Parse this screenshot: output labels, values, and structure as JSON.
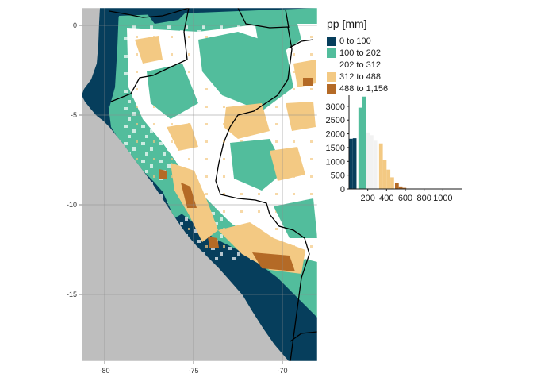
{
  "legend": {
    "title": "pp [mm]",
    "items": [
      {
        "label": "0 to 100",
        "color": "#063e5c"
      },
      {
        "label": "100 to 202",
        "color": "#52bd9c"
      },
      {
        "label": "202 to 312",
        "color": "#ffffff"
      },
      {
        "label": "312 to 488",
        "color": "#f3c983"
      },
      {
        "label": "488 to 1,156",
        "color": "#b46a26"
      }
    ]
  },
  "chart_data": {
    "type": "map",
    "lon_ticks": [
      "-80",
      "-75",
      "-70"
    ],
    "lat_ticks": [
      "0",
      "-5",
      "-10",
      "-15"
    ],
    "histogram": {
      "type": "bar",
      "x_ticks": [
        "200",
        "400",
        "600",
        "800",
        "1000"
      ],
      "y_ticks": [
        "0",
        "500",
        "1000",
        "1500",
        "2000",
        "2500",
        "3000"
      ],
      "xlim": [
        0,
        1200
      ],
      "ylim": [
        0,
        3400
      ],
      "bins": [
        {
          "x0": 0,
          "x1": 40,
          "count": 1820,
          "class": 0
        },
        {
          "x0": 40,
          "x1": 80,
          "count": 1840,
          "class": 0
        },
        {
          "x0": 100,
          "x1": 140,
          "count": 2950,
          "class": 1
        },
        {
          "x0": 140,
          "x1": 180,
          "count": 3350,
          "class": 1
        },
        {
          "x0": 180,
          "x1": 220,
          "count": 2050,
          "class": 2
        },
        {
          "x0": 220,
          "x1": 260,
          "count": 1950,
          "class": 2
        },
        {
          "x0": 260,
          "x1": 300,
          "count": 1750,
          "class": 2
        },
        {
          "x0": 320,
          "x1": 360,
          "count": 1650,
          "class": 3
        },
        {
          "x0": 360,
          "x1": 400,
          "count": 1050,
          "class": 3
        },
        {
          "x0": 400,
          "x1": 440,
          "count": 700,
          "class": 3
        },
        {
          "x0": 440,
          "x1": 480,
          "count": 420,
          "class": 3
        },
        {
          "x0": 490,
          "x1": 530,
          "count": 210,
          "class": 4
        },
        {
          "x0": 530,
          "x1": 570,
          "count": 90,
          "class": 4
        },
        {
          "x0": 570,
          "x1": 610,
          "count": 40,
          "class": 4
        },
        {
          "x0": 610,
          "x1": 650,
          "count": 15,
          "class": 4
        }
      ]
    }
  }
}
